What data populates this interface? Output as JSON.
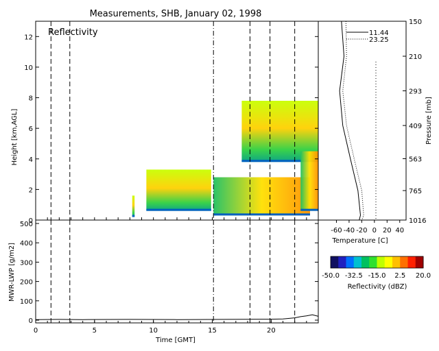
{
  "chart_data": [
    {
      "type": "heatmap",
      "title": "Measurements, SHB, January 02, 1998",
      "panel_label": "Reflectivity",
      "ylabel": "Height [km,AGL]",
      "xlim": [
        0,
        24
      ],
      "ylim": [
        0,
        13
      ],
      "yticks": [
        "0",
        "2",
        "4",
        "6",
        "8",
        "10",
        "12"
      ],
      "dashed_vlines_x": [
        1.3,
        2.9,
        15.1,
        18.2,
        19.9,
        22.0
      ],
      "echo_regions": [
        {
          "x": [
            8.2,
            8.4
          ],
          "y": [
            0.2,
            1.6
          ]
        },
        {
          "x": [
            9.4,
            14.9
          ],
          "y": [
            0.6,
            3.3
          ]
        },
        {
          "x": [
            15.1,
            23.3
          ],
          "y": [
            0.3,
            2.8
          ]
        },
        {
          "x": [
            17.5,
            24.0
          ],
          "y": [
            3.8,
            7.8
          ]
        },
        {
          "x": [
            22.5,
            24.0
          ],
          "y": [
            0.6,
            4.5
          ]
        }
      ]
    },
    {
      "type": "line",
      "xlabel": "Temperature [C]",
      "ylabel": "Pressure [mb]",
      "xticks": [
        "-60",
        "-40",
        "-20",
        "0",
        "20",
        "40"
      ],
      "yticks": [
        "150",
        "210",
        "293",
        "409",
        "563",
        "765",
        "1016"
      ],
      "series": [
        {
          "name": "11.44",
          "style": "solid",
          "points": [
            [
              -52,
              150
            ],
            [
              -48,
              210
            ],
            [
              -55,
              293
            ],
            [
              -50,
              409
            ],
            [
              -38,
              563
            ],
            [
              -26,
              765
            ],
            [
              -22,
              970
            ],
            [
              -24,
              1016
            ]
          ]
        },
        {
          "name": "23.25",
          "style": "dotted",
          "points": [
            [
              -45,
              150
            ],
            [
              -44,
              210
            ],
            [
              -50,
              293
            ],
            [
              -44,
              409
            ],
            [
              -32,
              563
            ],
            [
              -20,
              765
            ],
            [
              -17,
              970
            ],
            [
              -20,
              1016
            ]
          ]
        }
      ],
      "zero_line_x": 0
    },
    {
      "type": "line",
      "xlabel": "Time [GMT]",
      "ylabel": "MWR-LWP [g/m2]",
      "xlim": [
        0,
        24
      ],
      "ylim": [
        0,
        500
      ],
      "xticks": [
        "0",
        "5",
        "10",
        "15",
        "20"
      ],
      "yticks": [
        "0",
        "100",
        "200",
        "300",
        "400",
        "500"
      ],
      "series": [
        {
          "points": [
            [
              0,
              3
            ],
            [
              2,
              4
            ],
            [
              4,
              3
            ],
            [
              8,
              4
            ],
            [
              12,
              3
            ],
            [
              16,
              4
            ],
            [
              20,
              5
            ],
            [
              21,
              6
            ],
            [
              22,
              12
            ],
            [
              22.5,
              18
            ],
            [
              23,
              22
            ],
            [
              23.5,
              28
            ],
            [
              24,
              20
            ]
          ]
        }
      ],
      "dashed_vlines_x": [
        1.3,
        2.9,
        15.1,
        18.2,
        19.9,
        22.0
      ]
    }
  ],
  "colorbar": {
    "label": "Reflectivity (dBZ)",
    "ticks": [
      "-50.0",
      "-32.5",
      "-15.0",
      "2.5",
      "20.0"
    ],
    "colors": [
      "#101060",
      "#2020c0",
      "#0070ff",
      "#00c0d0",
      "#00c060",
      "#30e030",
      "#c0ff00",
      "#ffff00",
      "#ffc000",
      "#ff7000",
      "#ff2000",
      "#a00000"
    ]
  }
}
